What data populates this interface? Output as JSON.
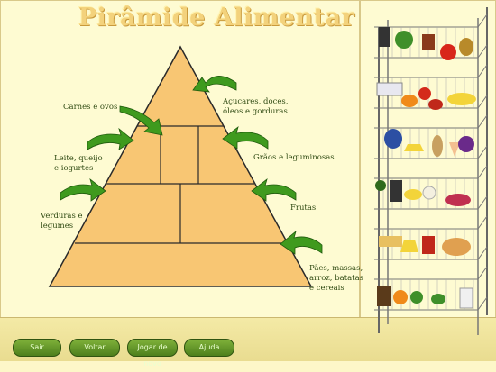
{
  "title": "Pirâmide Alimentar",
  "labels": {
    "carnes": "Carnes e ovos",
    "acucares_1": "Açucares, doces,",
    "acucares_2": "óleos e gorduras",
    "leite_1": "Leite, queijo",
    "leite_2": "e iogurtes",
    "graos": "Grãos e leguminosas",
    "verduras_1": "Verduras e",
    "verduras_2": "legumes",
    "frutas": "Frutas",
    "paes_1": "Pães, massas,",
    "paes_2": "arroz, batatas",
    "paes_3": "e cereais"
  },
  "buttons": {
    "sair": "Sair",
    "voltar": "Voltar",
    "jogar": "Jogar de novo",
    "ajuda": "Ajuda"
  },
  "colors": {
    "pyramid_fill": "#f8c673",
    "arrow_green": "#3f9a1e",
    "button_green": "#5a8f22"
  }
}
